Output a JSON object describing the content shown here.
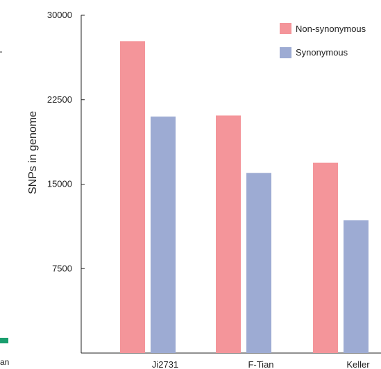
{
  "chart_data": {
    "type": "bar",
    "categories": [
      "Ji2731",
      "F-Tian",
      "Keller"
    ],
    "series": [
      {
        "name": "Non-synonymous",
        "values": [
          27700,
          21100,
          16900
        ],
        "color": "#f4959a"
      },
      {
        "name": "Synonymous",
        "values": [
          21000,
          16000,
          11800
        ],
        "color": "#9dabd3"
      }
    ],
    "ylabel": "SNPs in genome",
    "xlabel": "",
    "ylim": [
      0,
      30000
    ],
    "yticks": [
      "7500",
      "15000",
      "22500",
      "30000"
    ],
    "grid": false,
    "legend": "top-right"
  },
  "edge": {
    "left_mark_color": "#1a9e6e",
    "left_text": "an"
  }
}
